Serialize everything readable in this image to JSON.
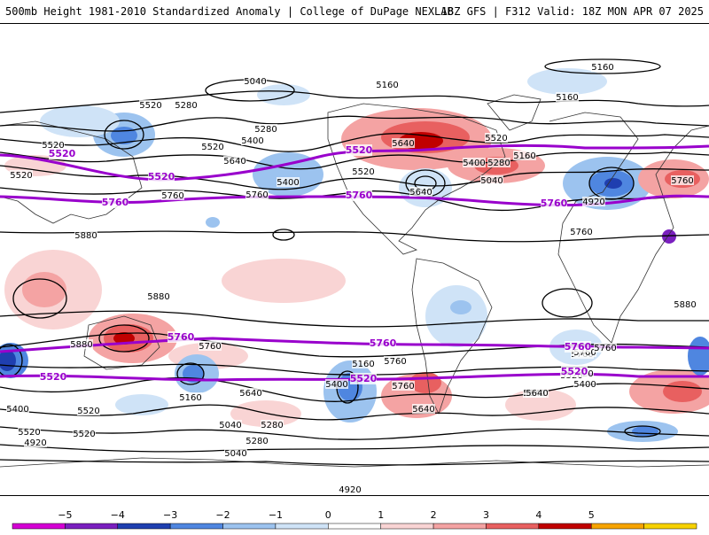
{
  "header": {
    "left_title": "500mb Height 1981-2010 Standardized Anomaly | College of DuPage NEXLAB",
    "right_title": "18Z GFS | F312 Valid: 18Z MON APR 07 2025"
  },
  "map": {
    "projection": "global lat-lon",
    "palette": {
      "contour": "#000000",
      "highlight_contour": "#9900cc",
      "land_outline": "#222222",
      "pos1": "#f9d4d4",
      "pos2": "#f4a3a3",
      "pos3": "#e86060",
      "pos4": "#c00000",
      "neg1": "#cfe3f7",
      "neg2": "#9cc3ef",
      "neg3": "#4f86e0",
      "neg4": "#1f3fb0",
      "neg5": "#7a1fbf"
    },
    "contour_labels": [
      "5040",
      "5160",
      "5160",
      "5160",
      "5280",
      "5280",
      "5400",
      "5400",
      "5520",
      "5520",
      "5520",
      "5520",
      "5640",
      "5640",
      "5760",
      "5760",
      "5880",
      "5880",
      "5880",
      "5880",
      "5160",
      "5040",
      "4920",
      "4920",
      "5760",
      "5760",
      "5640",
      "5520",
      "5400",
      "5160",
      "5400",
      "5280",
      "5040",
      "5280",
      "5520",
      "5640",
      "5640",
      "5760",
      "5640",
      "5520",
      "5400",
      "5280",
      "5160",
      "5040",
      "4920",
      "5520",
      "5760",
      "5760",
      "5520",
      "5520",
      "5760",
      "5760",
      "5760",
      "5640",
      "5520",
      "5400"
    ],
    "highlight_labels": [
      "5520",
      "5520",
      "5520",
      "5760",
      "5760",
      "5760",
      "5760",
      "5760",
      "5760",
      "5520",
      "5520",
      "5520"
    ]
  },
  "colorbar": {
    "ticks": [
      "−5",
      "−4",
      "−3",
      "−2",
      "−1",
      "0",
      "1",
      "2",
      "3",
      "4",
      "5"
    ],
    "colors": [
      "#d400d4",
      "#7a1fbf",
      "#1f3fb0",
      "#4f86e0",
      "#9cc3ef",
      "#cfe3f7",
      "#ffffff",
      "#f9d4d4",
      "#f4a3a3",
      "#e86060",
      "#c00000",
      "#f7a400",
      "#f7d200"
    ]
  }
}
